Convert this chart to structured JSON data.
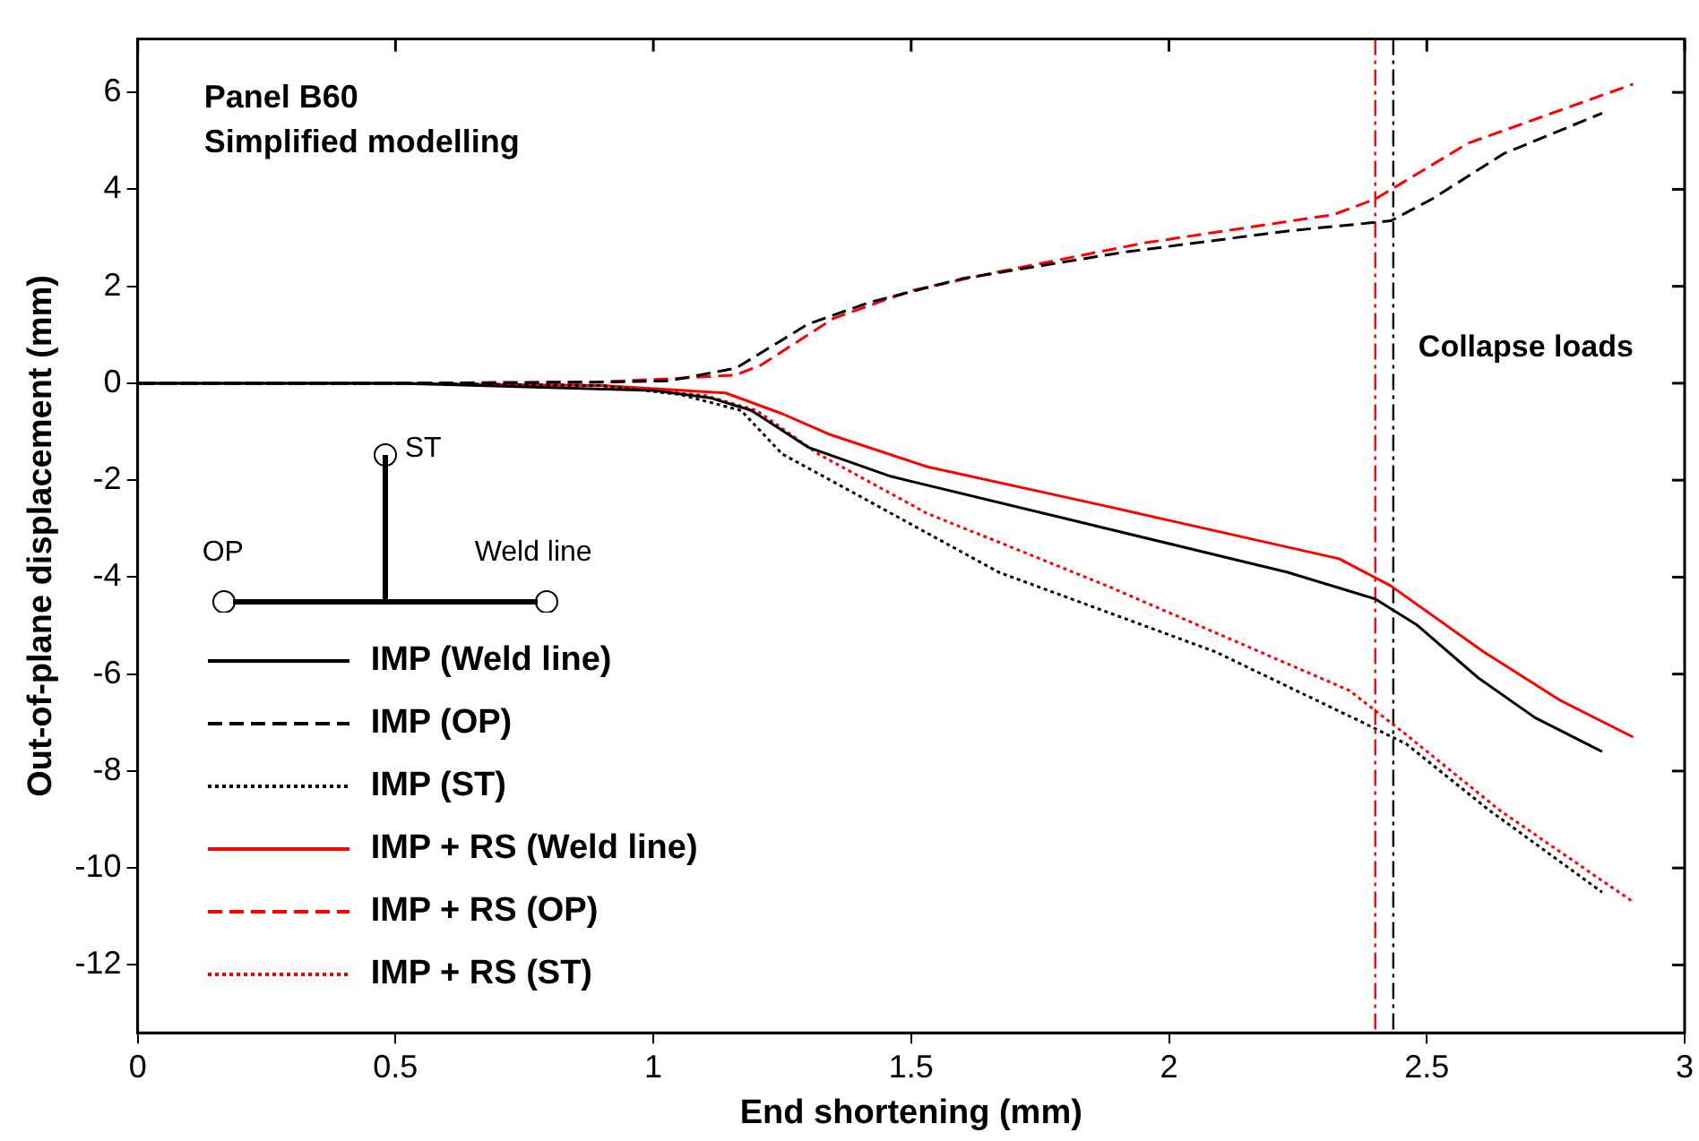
{
  "chart_data": {
    "type": "line",
    "xlabel": "End shortening (mm)",
    "ylabel": "Out-of-plane displacement (mm)",
    "xlim": [
      0,
      3
    ],
    "xticks": [
      0,
      0.5,
      1,
      1.5,
      2,
      2.5,
      3
    ],
    "ylim": [
      -13.4,
      7.1
    ],
    "yticks": [
      -12,
      -10,
      -8,
      -6,
      -4,
      -2,
      0,
      2,
      4,
      6
    ],
    "grid": false,
    "legend": "bottom left",
    "marker": "none",
    "series": [
      {
        "name": "IMP (Weld line)",
        "color": "#000000",
        "line_style": "solid",
        "x": [
          0,
          0.5,
          0.83,
          1.0,
          1.11,
          1.19,
          1.3,
          1.46,
          1.81,
          2.23,
          2.4,
          2.48,
          2.6,
          2.71,
          2.84
        ],
        "values": [
          0,
          0,
          -0.1,
          -0.15,
          -0.3,
          -0.56,
          -1.32,
          -1.92,
          -2.82,
          -3.9,
          -4.45,
          -4.98,
          -6.08,
          -6.9,
          -7.6
        ]
      },
      {
        "name": "IMP (OP)",
        "color": "#000000",
        "line_style": "dashed",
        "x": [
          0,
          0.5,
          0.9,
          1.03,
          1.16,
          1.3,
          1.42,
          1.6,
          1.91,
          2.23,
          2.43,
          2.51,
          2.65,
          2.84
        ],
        "values": [
          0,
          0,
          0.02,
          0.05,
          0.31,
          1.22,
          1.67,
          2.16,
          2.7,
          3.14,
          3.35,
          3.8,
          4.74,
          5.57
        ]
      },
      {
        "name": "IMP (ST)",
        "color": "#000000",
        "line_style": "dotted",
        "x": [
          0,
          0.5,
          0.9,
          1.05,
          1.17,
          1.25,
          1.39,
          1.67,
          2.09,
          2.37,
          2.46,
          2.62,
          2.84
        ],
        "values": [
          0,
          0,
          -0.05,
          -0.23,
          -0.56,
          -1.46,
          -2.27,
          -3.9,
          -5.54,
          -6.97,
          -7.44,
          -8.8,
          -10.5
        ]
      },
      {
        "name": "IMP + RS (Weld line)",
        "color": "#ff0000",
        "line_style": "solid",
        "x": [
          0,
          0.5,
          0.9,
          1.14,
          1.25,
          1.34,
          1.53,
          1.88,
          2.33,
          2.43,
          2.61,
          2.76,
          2.9
        ],
        "values": [
          0,
          0,
          -0.05,
          -0.2,
          -0.63,
          -1.05,
          -1.72,
          -2.54,
          -3.62,
          -4.18,
          -5.54,
          -6.55,
          -7.3
        ]
      },
      {
        "name": "IMP + RS (OP)",
        "color": "#ff0000",
        "line_style": "dashed",
        "x": [
          0,
          0.5,
          0.9,
          1.03,
          1.16,
          1.21,
          1.35,
          1.5,
          1.67,
          1.95,
          2.32,
          2.4,
          2.58,
          2.9
        ],
        "values": [
          0,
          0,
          0.03,
          0.09,
          0.17,
          0.38,
          1.34,
          1.91,
          2.3,
          2.89,
          3.48,
          3.8,
          4.95,
          6.17
        ]
      },
      {
        "name": "IMP + RS (ST)",
        "color": "#ff0000",
        "line_style": "dotted",
        "x": [
          0,
          0.5,
          0.9,
          1.1,
          1.2,
          1.32,
          1.53,
          1.88,
          2.35,
          2.46,
          2.64,
          2.9
        ],
        "values": [
          0,
          0,
          -0.05,
          -0.25,
          -0.56,
          -1.46,
          -2.68,
          -4.18,
          -6.34,
          -7.25,
          -8.8,
          -10.7
        ]
      }
    ],
    "ref_lines": [
      {
        "axis": "x",
        "value": 2.4,
        "color": "#ff0000",
        "line_style": "dashed"
      },
      {
        "axis": "x",
        "value": 2.435,
        "color": "#000000",
        "line_style": "dashed"
      }
    ],
    "annotations": [
      "Panel B60",
      "Simplified modelling",
      "ST",
      "OP",
      "Weld line",
      "Collapse loads"
    ]
  }
}
